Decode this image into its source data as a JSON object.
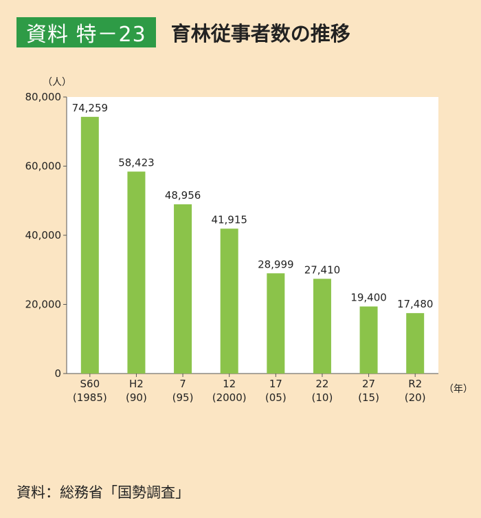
{
  "header": {
    "badge": "資料 特－23",
    "title": "育林従事者数の推移"
  },
  "chart_data": {
    "type": "bar",
    "y_unit": "（人）",
    "x_unit": "（年）",
    "categories": [
      {
        "era": "S60",
        "year": "(1985)"
      },
      {
        "era": "H2",
        "year": "(90)"
      },
      {
        "era": "7",
        "year": "(95)"
      },
      {
        "era": "12",
        "year": "(2000)"
      },
      {
        "era": "17",
        "year": "(05)"
      },
      {
        "era": "22",
        "year": "(10)"
      },
      {
        "era": "27",
        "year": "(15)"
      },
      {
        "era": "R2",
        "year": "(20)"
      }
    ],
    "values": [
      74259,
      58423,
      48956,
      41915,
      28999,
      27410,
      19400,
      17480
    ],
    "value_labels": [
      "74,259",
      "58,423",
      "48,956",
      "41,915",
      "28,999",
      "27,410",
      "19,400",
      "17,480"
    ],
    "yticks": [
      {
        "value": 0,
        "label": "0"
      },
      {
        "value": 20000,
        "label": "20,000"
      },
      {
        "value": 40000,
        "label": "40,000"
      },
      {
        "value": 60000,
        "label": "60,000"
      },
      {
        "value": 80000,
        "label": "80,000"
      }
    ],
    "ylim": [
      0,
      80000
    ],
    "grid": false,
    "bar_color": "#8bc34a",
    "plot_background": "#ffffff"
  },
  "footer": {
    "source": "資料：総務省「国勢調査」"
  }
}
